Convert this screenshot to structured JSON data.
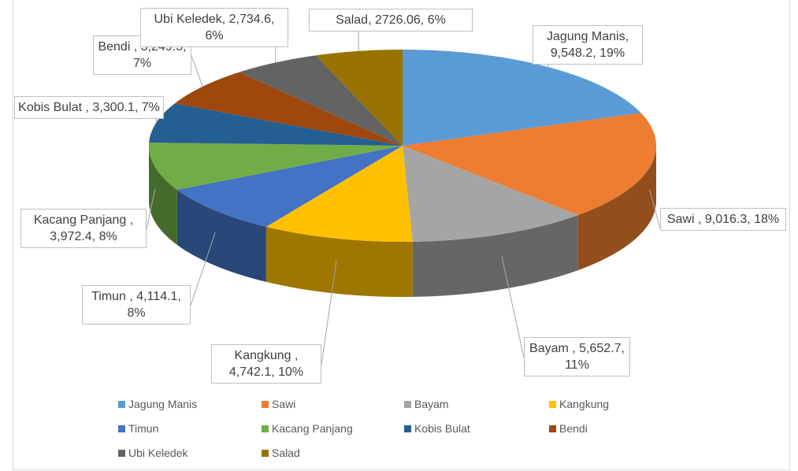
{
  "chart_data": {
    "type": "pie3d",
    "categories": [
      "Jagung Manis",
      "Sawi",
      "Bayam",
      "Kangkung",
      "Timun",
      "Kacang Panjang",
      "Kobis Bulat",
      "Bendi",
      "Ubi Keledek",
      "Salad"
    ],
    "values": [
      9548.2,
      9016.3,
      5652.7,
      4742.1,
      4114.1,
      3972.4,
      3300.1,
      3249.5,
      2734.6,
      2726.06
    ],
    "value_labels": [
      "Jagung Manis, 9,548.2, 19%",
      "Sawi , 9,016.3, 18%",
      "Bayam , 5,652.7, 11%",
      "Kangkung , 4,742.1, 10%",
      "Timun , 4,114.1, 8%",
      "Kacang Panjang , 3,972.4, 8%",
      "Kobis Bulat , 3,300.1, 7%",
      "Bendi , 3,249.5, 7%",
      "Ubi Keledek, 2,734.6, 6%",
      "Salad, 2726.06, 6%"
    ],
    "colors": [
      "#5b9bd5",
      "#ed7d31",
      "#a5a5a5",
      "#ffc000",
      "#4472c4",
      "#70ad47",
      "#255e91",
      "#9e480e",
      "#636363",
      "#997300"
    ],
    "legend": "bottom"
  }
}
